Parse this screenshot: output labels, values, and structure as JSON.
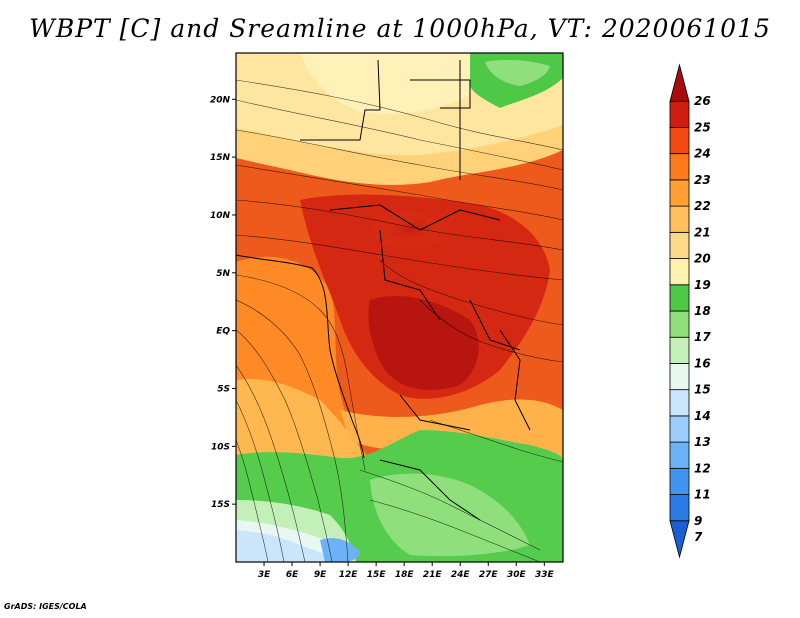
{
  "title": "WBPT [C] and Sreamline at 1000hPa, VT: 2020061015",
  "credit": "GrADS: IGES/COLA",
  "map": {
    "lon_range": [
      0,
      35
    ],
    "lat_range": [
      -20,
      24
    ],
    "lat_ticks": [
      {
        "value": 20,
        "label": "20N"
      },
      {
        "value": 15,
        "label": "15N"
      },
      {
        "value": 10,
        "label": "10N"
      },
      {
        "value": 5,
        "label": "5N"
      },
      {
        "value": 0,
        "label": "EQ"
      },
      {
        "value": -5,
        "label": "5S"
      },
      {
        "value": -10,
        "label": "10S"
      },
      {
        "value": -15,
        "label": "15S"
      }
    ],
    "lon_ticks": [
      {
        "value": 3,
        "label": "3E"
      },
      {
        "value": 6,
        "label": "6E"
      },
      {
        "value": 9,
        "label": "9E"
      },
      {
        "value": 12,
        "label": "12E"
      },
      {
        "value": 15,
        "label": "15E"
      },
      {
        "value": 18,
        "label": "18E"
      },
      {
        "value": 21,
        "label": "21E"
      },
      {
        "value": 24,
        "label": "24E"
      },
      {
        "value": 27,
        "label": "27E"
      },
      {
        "value": 30,
        "label": "30E"
      },
      {
        "value": 33,
        "label": "33E"
      }
    ]
  },
  "colorbar": {
    "labels": [
      "7",
      "9",
      "11",
      "12",
      "13",
      "14",
      "15",
      "16",
      "17",
      "18",
      "19",
      "20",
      "21",
      "22",
      "23",
      "24",
      "25",
      "26"
    ],
    "colors": [
      "#1a5fd6",
      "#2b7ae6",
      "#3f95f0",
      "#6cb2f7",
      "#9dcdfb",
      "#cbe6fc",
      "#e8f8f0",
      "#c3f0b8",
      "#8fe07c",
      "#4ec846",
      "#fff1b0",
      "#ffd98a",
      "#ffbf5a",
      "#ffa032",
      "#ff7a1a",
      "#f04a12",
      "#cf1e10",
      "#a80c0c"
    ]
  }
}
